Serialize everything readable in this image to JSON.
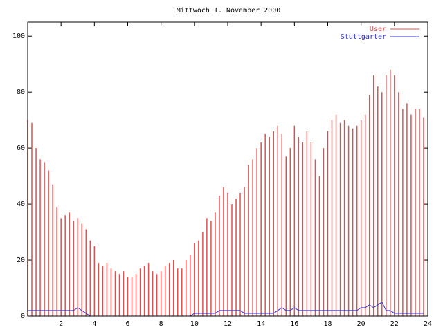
{
  "chart_data": {
    "type": "impulse-line",
    "title": "Mittwoch 1. November 2000",
    "x": [
      0,
      0.25,
      0.5,
      0.75,
      1,
      1.25,
      1.5,
      1.75,
      2,
      2.25,
      2.5,
      2.75,
      3,
      3.25,
      3.5,
      3.75,
      4,
      4.25,
      4.5,
      4.75,
      5,
      5.25,
      5.5,
      5.75,
      6,
      6.25,
      6.5,
      6.75,
      7,
      7.25,
      7.5,
      7.75,
      8,
      8.25,
      8.5,
      8.75,
      9,
      9.25,
      9.5,
      9.75,
      10,
      10.25,
      10.5,
      10.75,
      11,
      11.25,
      11.5,
      11.75,
      12,
      12.25,
      12.5,
      12.75,
      13,
      13.25,
      13.5,
      13.75,
      14,
      14.25,
      14.5,
      14.75,
      15,
      15.25,
      15.5,
      15.75,
      16,
      16.25,
      16.5,
      16.75,
      17,
      17.25,
      17.5,
      17.75,
      18,
      18.25,
      18.5,
      18.75,
      19,
      19.25,
      19.5,
      19.75,
      20,
      20.25,
      20.5,
      20.75,
      21,
      21.25,
      21.5,
      21.75,
      22,
      22.25,
      22.5,
      22.75,
      23,
      23.25,
      23.5,
      23.75
    ],
    "series": [
      {
        "name": "User",
        "color": "#e05050",
        "style": "impulses",
        "values": [
          70,
          69,
          60,
          56,
          55,
          52,
          47,
          39,
          35,
          36,
          37,
          34,
          35,
          33,
          31,
          27,
          25,
          19,
          18,
          19,
          17,
          16,
          15,
          16,
          14,
          14,
          15,
          17,
          18,
          19,
          16,
          15,
          16,
          18,
          19,
          20,
          17,
          17,
          20,
          22,
          26,
          27,
          30,
          35,
          34,
          37,
          43,
          46,
          44,
          40,
          42,
          44,
          46,
          54,
          56,
          60,
          62,
          65,
          64,
          66,
          68,
          65,
          57,
          60,
          68,
          64,
          62,
          66,
          62,
          56,
          50,
          60,
          66,
          70,
          72,
          69,
          70,
          68,
          67,
          68,
          70,
          72,
          79,
          86,
          82,
          80,
          86,
          88,
          86,
          80,
          74,
          76,
          72,
          74,
          74,
          71
        ]
      },
      {
        "name": "Stuttgarter",
        "color": "#3030d0",
        "style": "line",
        "values": [
          2,
          2,
          2,
          2,
          2,
          2,
          2,
          2,
          2,
          2,
          2,
          2,
          3,
          2,
          1,
          0,
          0,
          0,
          0,
          0,
          0,
          0,
          0,
          0,
          0,
          0,
          0,
          0,
          0,
          0,
          0,
          0,
          0,
          0,
          0,
          0,
          0,
          0,
          0,
          0,
          1,
          1,
          1,
          1,
          1,
          1,
          2,
          2,
          2,
          2,
          2,
          2,
          1,
          1,
          1,
          1,
          1,
          1,
          1,
          1,
          2,
          3,
          2,
          2,
          3,
          2,
          2,
          2,
          2,
          2,
          2,
          2,
          2,
          2,
          2,
          2,
          2,
          2,
          2,
          2,
          3,
          3,
          4,
          3,
          4,
          5,
          2,
          2,
          1,
          1,
          1,
          1,
          1,
          1,
          1,
          1
        ]
      }
    ],
    "xlim": [
      0,
      24
    ],
    "xticks": [
      2,
      4,
      6,
      8,
      10,
      12,
      14,
      16,
      18,
      20,
      22,
      24
    ],
    "ylim": [
      0,
      105
    ],
    "yticks": [
      0,
      20,
      40,
      60,
      80,
      100
    ],
    "legend": "top-right"
  }
}
